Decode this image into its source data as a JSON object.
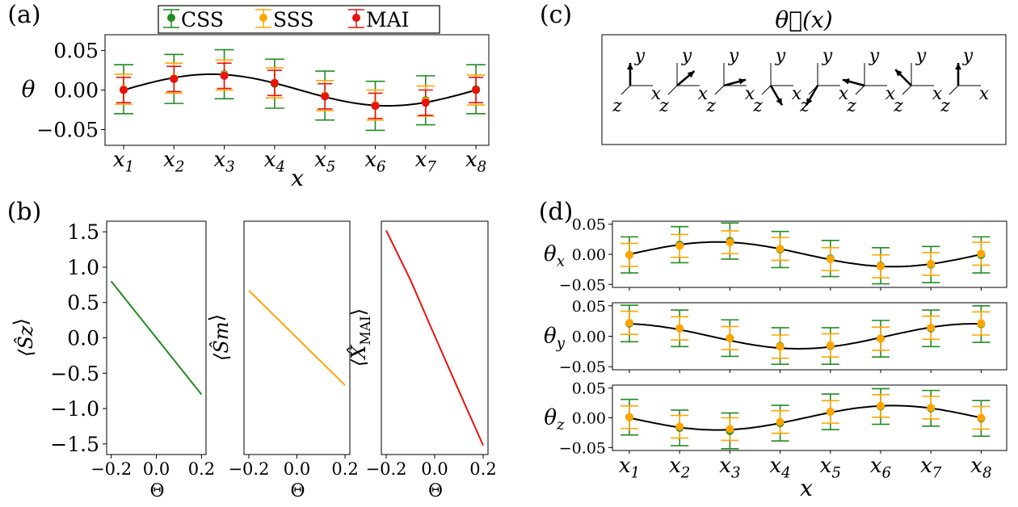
{
  "panel_labels": [
    "(a)",
    "(b)",
    "(c)",
    "(d)"
  ],
  "colors": {
    "CSS": "#228b22",
    "SSS": "#ffa500",
    "MAI": "#e8120f",
    "fit": "#000000"
  },
  "chart_data": [
    {
      "id": "a",
      "type": "scatter",
      "xlabel": "x",
      "ylabel": "θ",
      "categories": [
        "x1",
        "x2",
        "x3",
        "x4",
        "x5",
        "x6",
        "x7",
        "x8"
      ],
      "ylim": [
        -0.07,
        0.07
      ],
      "yticks": [
        "0.05",
        "0.00",
        "−0.05"
      ],
      "legend": {
        "placement": "top-center",
        "entries": [
          "CSS",
          "SSS",
          "MAI"
        ]
      },
      "fit_curve": "sine",
      "series": [
        {
          "name": "CSS",
          "values": [
            0.001,
            0.014,
            0.02,
            0.008,
            -0.007,
            -0.02,
            -0.013,
            0.001
          ],
          "errors": [
            0.031,
            0.031,
            0.031,
            0.031,
            0.031,
            0.031,
            0.031,
            0.031
          ]
        },
        {
          "name": "SSS",
          "values": [
            0.001,
            0.015,
            0.019,
            0.009,
            -0.007,
            -0.019,
            -0.014,
            0.0
          ],
          "errors": [
            0.019,
            0.019,
            0.019,
            0.019,
            0.019,
            0.019,
            0.019,
            0.019
          ]
        },
        {
          "name": "MAI",
          "values": [
            0.0,
            0.014,
            0.018,
            0.009,
            -0.008,
            -0.02,
            -0.016,
            0.0
          ],
          "errors": [
            0.016,
            0.016,
            0.016,
            0.016,
            0.016,
            0.016,
            0.016,
            0.016
          ]
        }
      ]
    },
    {
      "id": "b1",
      "type": "line",
      "xlabel": "Θ",
      "ylabel": "⟨Ŝz⟩",
      "xlim": [
        -0.22,
        0.22
      ],
      "ylim": [
        -1.65,
        1.65
      ],
      "xticks": [
        "−0.2",
        "0.0",
        "0.2"
      ],
      "yticks": [
        "1.5",
        "1.0",
        "0.5",
        "0.0",
        "−0.5",
        "−1.0",
        "−1.5"
      ],
      "series": [
        {
          "color": "CSS",
          "x": [
            -0.2,
            0.2
          ],
          "y": [
            0.8,
            -0.8
          ]
        }
      ]
    },
    {
      "id": "b2",
      "type": "line",
      "xlabel": "Θ",
      "ylabel": "⟨Ŝm⟩",
      "xlim": [
        -0.22,
        0.22
      ],
      "ylim": [
        -1.65,
        1.65
      ],
      "xticks": [
        "−0.2",
        "0.0",
        "0.2"
      ],
      "series": [
        {
          "color": "SSS",
          "x": [
            -0.2,
            0.2
          ],
          "y": [
            0.67,
            -0.67
          ]
        }
      ]
    },
    {
      "id": "b3",
      "type": "line",
      "xlabel": "Θ",
      "ylabel": "⟨X̂MAI⟩",
      "xlim": [
        -0.22,
        0.22
      ],
      "ylim": [
        -1.65,
        1.65
      ],
      "xticks": [
        "−0.2",
        "0.0",
        "0.2"
      ],
      "series": [
        {
          "color": "MAI",
          "x": [
            -0.2,
            -0.1,
            0.0,
            0.1,
            0.2
          ],
          "y": [
            1.52,
            0.82,
            0.03,
            -0.75,
            -1.52
          ]
        }
      ]
    },
    {
      "id": "c",
      "type": "diagram",
      "title": "θ⃗(x)",
      "axis_labels": [
        "x",
        "y",
        "z"
      ],
      "arrows_deg": [
        90,
        40,
        15,
        -60,
        -120,
        165,
        135,
        90
      ]
    },
    {
      "id": "d",
      "type": "scatter",
      "xlabel": "x",
      "categories": [
        "x1",
        "x2",
        "x3",
        "x4",
        "x5",
        "x6",
        "x7",
        "x8"
      ],
      "ylim": [
        -0.055,
        0.055
      ],
      "yticks": [
        "0.05",
        "0.00",
        "−0.05"
      ],
      "subplots": [
        {
          "ylabel": "θx",
          "CSS": [
            -0.001,
            0.016,
            0.022,
            0.008,
            -0.007,
            -0.019,
            -0.017,
            -0.001
          ],
          "SSS": [
            -0.001,
            0.014,
            0.02,
            0.009,
            -0.008,
            -0.02,
            -0.016,
            0.001
          ]
        },
        {
          "ylabel": "θy",
          "CSS": [
            0.021,
            0.013,
            -0.003,
            -0.016,
            -0.016,
            -0.004,
            0.013,
            0.02
          ],
          "SSS": [
            0.022,
            0.013,
            -0.003,
            -0.017,
            -0.015,
            -0.004,
            0.014,
            0.021
          ]
        },
        {
          "ylabel": "θz",
          "CSS": [
            0.001,
            -0.017,
            -0.022,
            -0.009,
            0.01,
            0.019,
            0.016,
            -0.001
          ],
          "SSS": [
            0.001,
            -0.015,
            -0.019,
            -0.007,
            0.01,
            0.02,
            0.017,
            0.0
          ]
        }
      ],
      "err_CSS": 0.03,
      "err_SSS": 0.019
    }
  ]
}
